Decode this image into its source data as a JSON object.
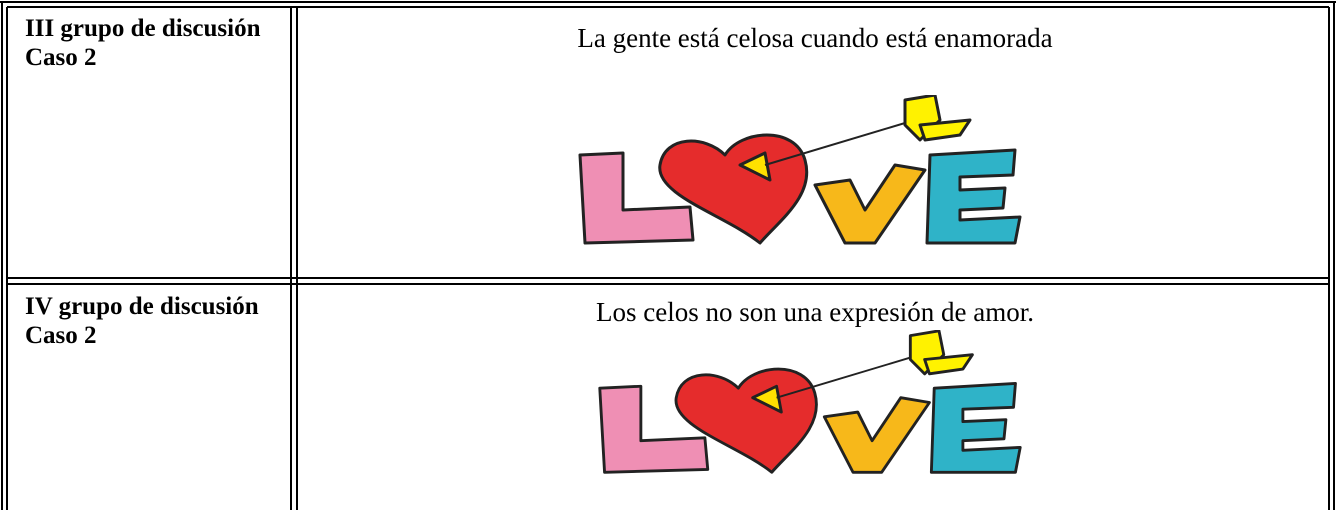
{
  "table": {
    "rows": [
      {
        "label": "III grupo de discusión",
        "case": "Caso 2",
        "statement": "La gente está celosa cuando está enamorada"
      },
      {
        "label": "IV grupo de discusión",
        "case": "Caso 2",
        "statement": "Los celos no son una expresión de amor."
      }
    ]
  }
}
